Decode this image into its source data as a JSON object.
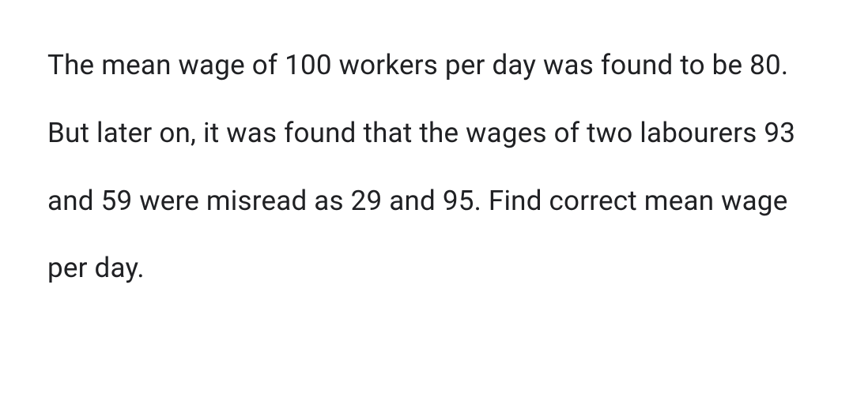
{
  "document": {
    "paragraph_text": "The mean wage of 100 workers per day was found to be 80. But later on, it was found that the wages of two labourers 93 and 59 were misread as 29 and 95. Find correct mean wage per day.",
    "text_color": "#202124",
    "background_color": "#ffffff",
    "font_size": 35,
    "line_height": 2.45,
    "font_weight": 400
  }
}
